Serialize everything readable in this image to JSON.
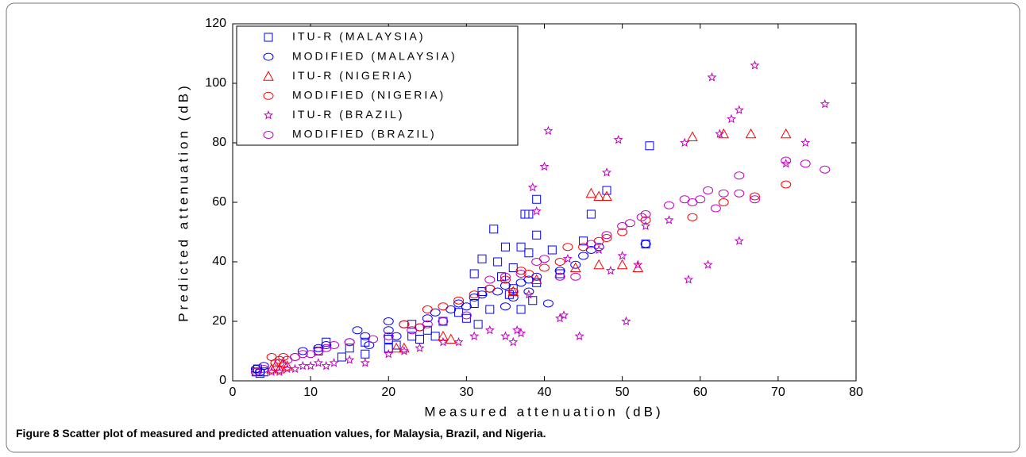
{
  "chart_data": {
    "type": "scatter",
    "xlabel": "Measured attenuation (dB)",
    "ylabel": "Predicted attenuation (dB)",
    "xlim": [
      0,
      80
    ],
    "xticks": [
      0,
      10,
      20,
      30,
      40,
      50,
      60,
      70,
      80
    ],
    "ylim": [
      0,
      120
    ],
    "yticks": [
      0,
      20,
      40,
      60,
      80,
      100,
      120
    ],
    "legend": "upper left",
    "series": [
      {
        "name": "ITU-R (MALAYSIA)",
        "color": "#0000ff",
        "marker": "square",
        "x": [
          3,
          3.2,
          3.5,
          4,
          11,
          12,
          14,
          15,
          17,
          17,
          20,
          20,
          21,
          23,
          23,
          24,
          25,
          26,
          27,
          29,
          30,
          31,
          31,
          31.5,
          32,
          33,
          33.5,
          34,
          35,
          35.5,
          36,
          37,
          37,
          37.5,
          38,
          38,
          38.5,
          39,
          39,
          41,
          45,
          46,
          48,
          53,
          53.5,
          42,
          39,
          36,
          34.5,
          32
        ],
        "y": [
          3,
          4,
          2.5,
          3,
          10,
          13,
          8,
          11,
          9,
          13,
          11,
          14,
          12,
          15,
          19,
          14,
          17,
          15,
          20,
          23,
          21,
          26,
          36,
          19,
          41,
          24,
          51,
          40,
          45,
          29,
          31,
          24,
          45,
          56,
          56,
          43,
          27,
          49,
          61,
          44,
          47,
          56,
          64,
          46,
          79,
          36,
          33,
          38,
          35,
          30
        ]
      },
      {
        "name": "MODIFIED (MALAYSIA)",
        "color": "#0000ff",
        "marker": "circle",
        "x": [
          3,
          3.5,
          4,
          9,
          11,
          12,
          15,
          16,
          17,
          17.5,
          20,
          20,
          21,
          22,
          24,
          25,
          26,
          28,
          29,
          30,
          31,
          32,
          33,
          34,
          35,
          36,
          37,
          38,
          39,
          40.5,
          42,
          44,
          45,
          46,
          47,
          53,
          38,
          35
        ],
        "y": [
          4,
          3,
          5,
          10,
          11,
          12,
          13,
          17,
          15,
          12,
          17,
          20,
          15,
          19,
          18,
          21,
          23,
          24,
          26,
          25,
          28,
          29,
          31,
          30,
          32,
          28,
          33,
          34,
          35,
          26,
          37,
          39,
          42,
          44,
          45,
          46,
          30,
          25
        ]
      },
      {
        "name": "ITU-R (NIGERIA)",
        "color": "#ff0000",
        "marker": "triangle",
        "x": [
          5,
          5.5,
          6,
          6.5,
          7,
          21,
          22,
          27,
          28,
          36,
          39,
          44,
          46,
          47,
          47,
          48,
          50,
          52,
          59,
          63,
          66.5,
          71
        ],
        "y": [
          4,
          5,
          4,
          6,
          5,
          11,
          11,
          15,
          14,
          30,
          34,
          38,
          63,
          62,
          39,
          62,
          39,
          38,
          82,
          83,
          83,
          83
        ]
      },
      {
        "name": "MODIFIED (NIGERIA)",
        "color": "#ff0000",
        "marker": "circle",
        "x": [
          5,
          5.5,
          6,
          6.5,
          8,
          22,
          24,
          25,
          27,
          29,
          31,
          33,
          35,
          36,
          37,
          38,
          40,
          42,
          43,
          45,
          47,
          48,
          50,
          53,
          59,
          63,
          67,
          71
        ],
        "y": [
          8,
          6,
          7,
          8,
          8,
          19,
          18,
          24,
          25,
          27,
          29,
          31,
          34,
          30,
          37,
          36,
          38,
          40,
          45,
          45,
          47,
          48,
          50,
          54,
          55,
          60,
          62,
          66
        ]
      },
      {
        "name": "ITU-R (BRAZIL)",
        "color": "#c000c0",
        "marker": "star",
        "x": [
          5,
          6,
          7,
          8,
          9,
          10,
          11,
          12,
          13,
          15,
          17,
          20,
          22,
          24,
          27,
          29,
          31,
          33,
          35,
          36,
          36.5,
          37,
          38,
          38.5,
          39,
          40,
          40.5,
          42,
          42.5,
          43,
          44.5,
          47,
          48,
          48.5,
          49.5,
          50,
          50.5,
          52,
          53,
          56,
          58,
          58.5,
          61,
          61.5,
          62.5,
          64,
          65,
          65,
          67,
          71,
          73.5,
          76
        ],
        "y": [
          3,
          3,
          4,
          4,
          5,
          5,
          6,
          5,
          6,
          7,
          6,
          9,
          10,
          11,
          13,
          13,
          15,
          17,
          15,
          13,
          17,
          16,
          29,
          65,
          57,
          72,
          84,
          21,
          22,
          41,
          15,
          44,
          70,
          37,
          81,
          42,
          20,
          39,
          52,
          54,
          80,
          34,
          39,
          102,
          83,
          88,
          91,
          47,
          106,
          73,
          80,
          93
        ]
      },
      {
        "name": "MODIFIED (BRAZIL)",
        "color": "#c000c0",
        "marker": "circle",
        "x": [
          3,
          4,
          6,
          7,
          8,
          9,
          10,
          11,
          12,
          13,
          15,
          18,
          20,
          23,
          25,
          27,
          30,
          33,
          35,
          37,
          39,
          40,
          42,
          44,
          46,
          48,
          50,
          51,
          52.5,
          53,
          56,
          58,
          59,
          60,
          61,
          62,
          63,
          65,
          65,
          67,
          71,
          73.5,
          76
        ],
        "y": [
          3,
          4,
          6,
          7,
          8,
          9,
          9,
          10,
          11,
          12,
          13,
          14,
          15,
          17,
          19,
          20,
          22,
          34,
          35,
          36,
          40,
          41,
          35,
          35,
          46,
          49,
          52,
          53,
          55,
          56,
          59,
          61,
          60,
          61,
          64,
          58,
          63,
          63,
          69,
          61,
          74,
          73,
          71
        ]
      }
    ]
  },
  "figure": {
    "label": "Figure 8",
    "caption": "Scatter plot of measured and predicted attenuation values, for Malaysia, Brazil, and Nigeria."
  }
}
